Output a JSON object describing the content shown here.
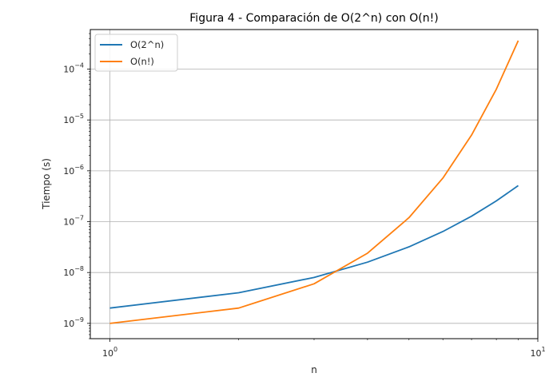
{
  "chart_data": {
    "type": "line",
    "title": "Figura 4 - Comparación de O(2^n) con O(n!)",
    "xlabel": "n",
    "ylabel": "Tiempo (s)",
    "x_scale": "log",
    "y_scale": "log",
    "xlim": [
      0.9,
      10
    ],
    "ylim": [
      5e-10,
      0.0006
    ],
    "x_ticks": [
      {
        "value": 1,
        "base": "10",
        "exp": "0"
      },
      {
        "value": 10,
        "base": "10",
        "exp": "1"
      }
    ],
    "y_ticks": [
      {
        "value": 1e-09,
        "base": "10",
        "exp": "−9"
      },
      {
        "value": 1e-08,
        "base": "10",
        "exp": "−8"
      },
      {
        "value": 1e-07,
        "base": "10",
        "exp": "−7"
      },
      {
        "value": 1e-06,
        "base": "10",
        "exp": "−6"
      },
      {
        "value": 1e-05,
        "base": "10",
        "exp": "−5"
      },
      {
        "value": 0.0001,
        "base": "10",
        "exp": "−4"
      }
    ],
    "grid": "y-major and x-major",
    "legend": "upper-left",
    "x": [
      1,
      2,
      3,
      4,
      5,
      6,
      7,
      8,
      9
    ],
    "series": [
      {
        "name": "O(2^n)",
        "color": "#1f77b4",
        "values": [
          2e-09,
          4e-09,
          8e-09,
          1.6e-08,
          3.2e-08,
          6.4e-08,
          1.28e-07,
          2.56e-07,
          5.12e-07
        ]
      },
      {
        "name": "O(n!)",
        "color": "#ff7f0e",
        "values": [
          1e-09,
          2e-09,
          6e-09,
          2.4e-08,
          1.2e-07,
          7.2e-07,
          5.04e-06,
          4.032e-05,
          0.00036288
        ]
      }
    ]
  }
}
